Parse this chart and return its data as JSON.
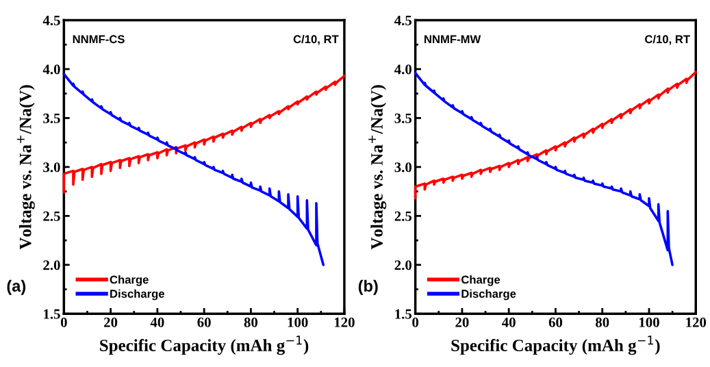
{
  "chart_data": [
    {
      "type": "line",
      "xlabel": "Specific Capacity (mAh g$^{−1}$)",
      "ylabel": "Voltage vs. Na$^{+}$/Na(V)",
      "xlim": [
        0,
        120
      ],
      "ylim": [
        1.5,
        4.5
      ],
      "xticks": [
        0,
        20,
        40,
        60,
        80,
        100,
        120
      ],
      "yticks": [
        {
          "value": 1.5,
          "label": "1.5"
        },
        {
          "value": 2.0,
          "label": "2.0"
        },
        {
          "value": 2.5,
          "label": "2.5"
        },
        {
          "value": 3.0,
          "label": "3.0"
        },
        {
          "value": 3.5,
          "label": "3.5"
        },
        {
          "value": 4.0,
          "label": "4.0"
        },
        {
          "value": 4.5,
          "label": "4.5"
        }
      ],
      "legend": "bottom left",
      "grid": false,
      "marker": "none",
      "line_style": "solid",
      "annotations": [
        "NNMF-CS",
        "C/10, RT",
        "(a)"
      ],
      "series": [
        {
          "name": "Charge",
          "color": "#ff0000",
          "x": [
            0,
            0,
            4,
            4,
            4.5,
            8,
            8,
            8.5,
            12,
            12,
            12.5,
            16,
            16,
            16.5,
            20,
            20,
            20.5,
            24,
            24,
            24.5,
            28,
            28,
            28.5,
            32,
            32,
            32.5,
            36,
            36,
            36.5,
            40,
            40,
            40.5,
            44,
            44,
            44.5,
            48,
            48,
            48.5,
            52,
            52,
            52.5,
            56,
            56,
            56.5,
            60,
            60,
            60.5,
            64,
            64,
            64.5,
            68,
            68,
            68.5,
            72,
            72,
            72.5,
            76,
            76,
            76.5,
            80,
            80,
            80.5,
            84,
            84,
            84.5,
            88,
            88,
            88.5,
            92,
            92,
            92.5,
            96,
            96,
            96.5,
            100,
            100,
            100.5,
            104,
            104,
            104.5,
            108,
            108,
            108.5,
            112,
            112,
            112.5,
            116,
            116,
            116.5,
            120
          ],
          "values": [
            2.74,
            2.93,
            2.96,
            2.82,
            2.95,
            2.98,
            2.87,
            2.97,
            3.0,
            2.9,
            2.99,
            3.03,
            2.93,
            3.02,
            3.05,
            2.96,
            3.04,
            3.07,
            2.99,
            3.06,
            3.09,
            3.01,
            3.08,
            3.11,
            3.04,
            3.1,
            3.13,
            3.07,
            3.12,
            3.15,
            3.09,
            3.14,
            3.18,
            3.12,
            3.17,
            3.2,
            3.14,
            3.19,
            3.22,
            3.17,
            3.21,
            3.25,
            3.2,
            3.24,
            3.28,
            3.23,
            3.27,
            3.31,
            3.26,
            3.3,
            3.34,
            3.3,
            3.33,
            3.37,
            3.33,
            3.36,
            3.41,
            3.37,
            3.4,
            3.45,
            3.41,
            3.44,
            3.49,
            3.45,
            3.48,
            3.53,
            3.5,
            3.52,
            3.57,
            3.54,
            3.56,
            3.62,
            3.59,
            3.61,
            3.67,
            3.64,
            3.66,
            3.72,
            3.69,
            3.71,
            3.77,
            3.74,
            3.76,
            3.82,
            3.79,
            3.81,
            3.87,
            3.84,
            3.86,
            3.93
          ]
        },
        {
          "name": "Discharge",
          "color": "#0000ff",
          "x": [
            0,
            4,
            4,
            4.5,
            8,
            8,
            8.5,
            12,
            12,
            12.5,
            16,
            16,
            16.5,
            20,
            20,
            20.5,
            24,
            24,
            24.5,
            28,
            28,
            28.5,
            32,
            32,
            32.5,
            36,
            36,
            36.5,
            40,
            40,
            40.5,
            44,
            44,
            44.5,
            48,
            48,
            48.5,
            52,
            52,
            52.5,
            56,
            56,
            56.5,
            60,
            60,
            60.5,
            64,
            64,
            64.5,
            68,
            68,
            68.5,
            72,
            72,
            72.5,
            76,
            76,
            76.5,
            80,
            80,
            80.5,
            84,
            84,
            84.5,
            88,
            88,
            88.5,
            92,
            92,
            92.5,
            96,
            96,
            96.5,
            100,
            100,
            100.5,
            104,
            104,
            104.5,
            108,
            108,
            108.5,
            111
          ],
          "values": [
            3.95,
            3.83,
            3.85,
            3.82,
            3.75,
            3.77,
            3.74,
            3.67,
            3.69,
            3.66,
            3.6,
            3.62,
            3.59,
            3.54,
            3.56,
            3.53,
            3.48,
            3.5,
            3.47,
            3.43,
            3.45,
            3.42,
            3.38,
            3.4,
            3.37,
            3.33,
            3.35,
            3.32,
            3.28,
            3.3,
            3.27,
            3.23,
            3.25,
            3.22,
            3.18,
            3.2,
            3.17,
            3.13,
            3.15,
            3.12,
            3.08,
            3.1,
            3.07,
            3.03,
            3.05,
            3.02,
            2.98,
            3.0,
            2.97,
            2.94,
            2.96,
            2.93,
            2.89,
            2.92,
            2.88,
            2.85,
            2.88,
            2.84,
            2.8,
            2.84,
            2.79,
            2.76,
            2.8,
            2.75,
            2.71,
            2.78,
            2.7,
            2.65,
            2.75,
            2.64,
            2.58,
            2.72,
            2.57,
            2.49,
            2.7,
            2.48,
            2.37,
            2.66,
            2.36,
            2.2,
            2.63,
            2.22,
            2.0
          ]
        }
      ]
    },
    {
      "type": "line",
      "xlabel": "Specific Capacity (mAh g$^{−1}$)",
      "ylabel": "Voltage vs. Na$^{+}$/Na(V)",
      "xlim": [
        0,
        120
      ],
      "ylim": [
        1.5,
        4.5
      ],
      "xticks": [
        0,
        20,
        40,
        60,
        80,
        100,
        120
      ],
      "yticks": [
        {
          "value": 1.5,
          "label": "1.5"
        },
        {
          "value": 2.0,
          "label": "2.0"
        },
        {
          "value": 2.5,
          "label": "2.5"
        },
        {
          "value": 3.0,
          "label": "3.0"
        },
        {
          "value": 3.5,
          "label": "3.5"
        },
        {
          "value": 4.0,
          "label": "4.0"
        },
        {
          "value": 4.5,
          "label": "4.5"
        }
      ],
      "legend": "bottom left",
      "grid": false,
      "marker": "none",
      "line_style": "solid",
      "annotations": [
        "NNMF-MW",
        "C/10, RT",
        "(b)"
      ],
      "series": [
        {
          "name": "Charge",
          "color": "#ff0000",
          "x": [
            0,
            0,
            4,
            4,
            4.5,
            8,
            8,
            8.5,
            12,
            12,
            12.5,
            16,
            16,
            16.5,
            20,
            20,
            20.5,
            24,
            24,
            24.5,
            28,
            28,
            28.5,
            32,
            32,
            32.5,
            36,
            36,
            36.5,
            40,
            40,
            40.5,
            44,
            44,
            44.5,
            48,
            48,
            48.5,
            52,
            52,
            52.5,
            56,
            56,
            56.5,
            60,
            60,
            60.5,
            64,
            64,
            64.5,
            68,
            68,
            68.5,
            72,
            72,
            72.5,
            76,
            76,
            76.5,
            80,
            80,
            80.5,
            84,
            84,
            84.5,
            88,
            88,
            88.5,
            92,
            92,
            92.5,
            96,
            96,
            96.5,
            100,
            100,
            100.5,
            104,
            104,
            104.5,
            108,
            108,
            108.5,
            112,
            112,
            112.5,
            116,
            116,
            116.5,
            120
          ],
          "values": [
            2.68,
            2.8,
            2.83,
            2.77,
            2.82,
            2.86,
            2.82,
            2.85,
            2.88,
            2.84,
            2.87,
            2.9,
            2.86,
            2.89,
            2.92,
            2.88,
            2.91,
            2.94,
            2.9,
            2.93,
            2.97,
            2.93,
            2.96,
            2.99,
            2.95,
            2.98,
            3.01,
            2.97,
            3.0,
            3.04,
            3.0,
            3.03,
            3.07,
            3.03,
            3.06,
            3.1,
            3.06,
            3.09,
            3.13,
            3.09,
            3.12,
            3.17,
            3.13,
            3.16,
            3.21,
            3.17,
            3.2,
            3.25,
            3.21,
            3.24,
            3.3,
            3.26,
            3.29,
            3.34,
            3.3,
            3.33,
            3.39,
            3.35,
            3.38,
            3.44,
            3.4,
            3.43,
            3.49,
            3.45,
            3.48,
            3.54,
            3.5,
            3.53,
            3.59,
            3.55,
            3.58,
            3.64,
            3.6,
            3.63,
            3.69,
            3.65,
            3.68,
            3.74,
            3.7,
            3.73,
            3.8,
            3.76,
            3.79,
            3.85,
            3.81,
            3.84,
            3.9,
            3.86,
            3.89,
            3.97
          ]
        },
        {
          "name": "Discharge",
          "color": "#0000ff",
          "x": [
            0,
            4,
            4,
            4.5,
            8,
            8,
            8.5,
            12,
            12,
            12.5,
            16,
            16,
            16.5,
            20,
            20,
            20.5,
            24,
            24,
            24.5,
            28,
            28,
            28.5,
            32,
            32,
            32.5,
            36,
            36,
            36.5,
            40,
            40,
            40.5,
            44,
            44,
            44.5,
            48,
            48,
            48.5,
            52,
            52,
            52.5,
            56,
            56,
            56.5,
            60,
            60,
            60.5,
            64,
            64,
            64.5,
            68,
            68,
            68.5,
            72,
            72,
            72.5,
            76,
            76,
            76.5,
            80,
            80,
            80.5,
            84,
            84,
            84.5,
            88,
            88,
            88.5,
            92,
            92,
            92.5,
            96,
            96,
            96.5,
            100,
            100,
            100.5,
            104,
            104,
            104.5,
            108,
            108,
            108.5,
            110
          ],
          "values": [
            3.96,
            3.84,
            3.86,
            3.83,
            3.76,
            3.78,
            3.75,
            3.68,
            3.7,
            3.67,
            3.61,
            3.63,
            3.6,
            3.55,
            3.57,
            3.54,
            3.49,
            3.51,
            3.48,
            3.43,
            3.45,
            3.42,
            3.37,
            3.39,
            3.36,
            3.31,
            3.33,
            3.3,
            3.25,
            3.27,
            3.24,
            3.19,
            3.21,
            3.18,
            3.13,
            3.15,
            3.12,
            3.08,
            3.1,
            3.07,
            3.03,
            3.05,
            3.02,
            2.98,
            3.0,
            2.97,
            2.94,
            2.96,
            2.93,
            2.9,
            2.92,
            2.89,
            2.87,
            2.89,
            2.86,
            2.84,
            2.86,
            2.83,
            2.81,
            2.83,
            2.8,
            2.78,
            2.8,
            2.77,
            2.75,
            2.78,
            2.74,
            2.71,
            2.75,
            2.7,
            2.67,
            2.72,
            2.66,
            2.6,
            2.68,
            2.58,
            2.45,
            2.62,
            2.43,
            2.15,
            2.55,
            2.17,
            2.0
          ]
        }
      ]
    }
  ]
}
